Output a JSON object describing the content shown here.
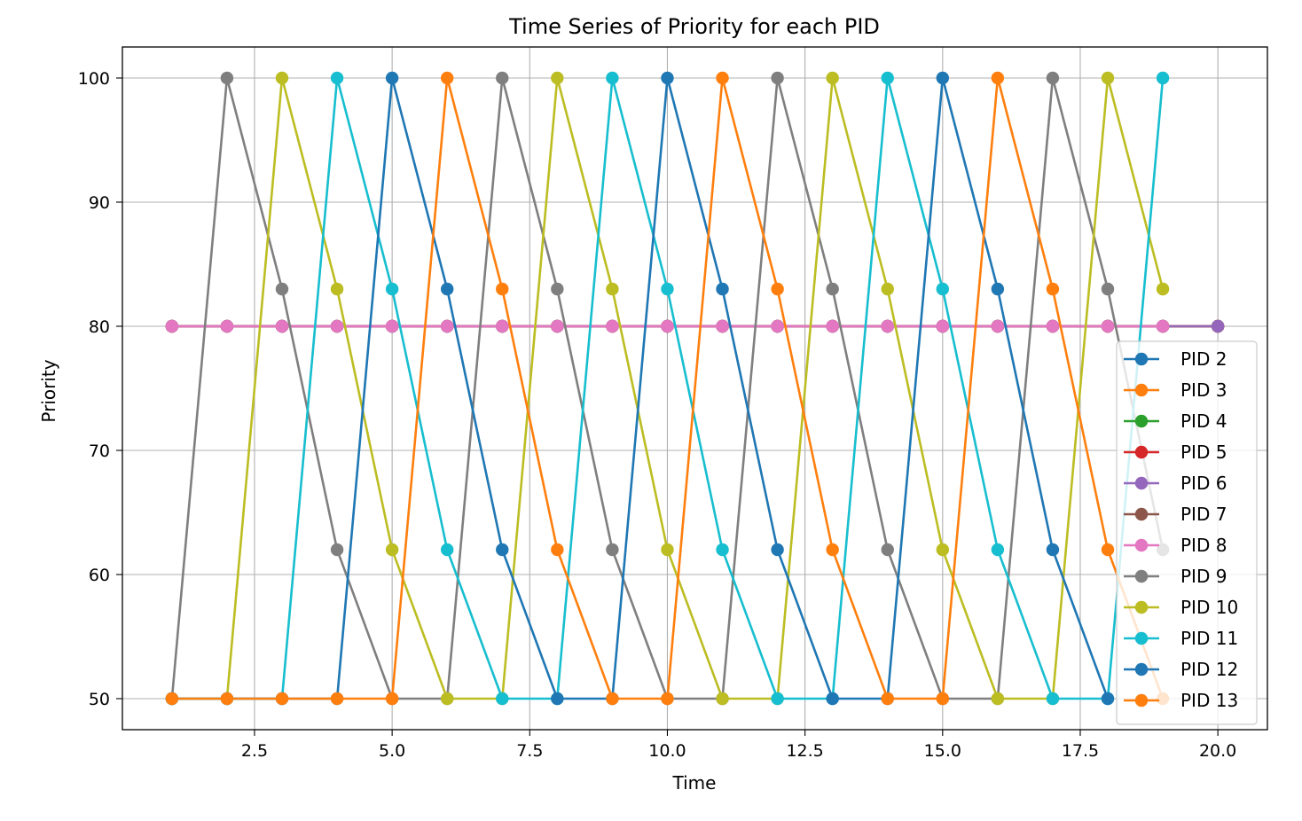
{
  "chart_data": {
    "type": "line",
    "title": "Time Series of Priority for each PID",
    "xlabel": "Time",
    "ylabel": "Priority",
    "xlim": [
      0.1,
      20.9
    ],
    "ylim": [
      47.5,
      102.5
    ],
    "xticks": [
      2.5,
      5.0,
      7.5,
      10.0,
      12.5,
      15.0,
      17.5,
      20.0
    ],
    "xtick_labels": [
      "2.5",
      "5.0",
      "7.5",
      "10.0",
      "12.5",
      "15.0",
      "17.5",
      "20.0"
    ],
    "yticks": [
      50,
      60,
      70,
      80,
      90,
      100
    ],
    "ytick_labels": [
      "50",
      "60",
      "70",
      "80",
      "90",
      "100"
    ],
    "grid": true,
    "legend_position": "lower-right",
    "series": [
      {
        "name": "PID 2",
        "color": "#1f77b4",
        "x": [
          1,
          2,
          3,
          4,
          5,
          6,
          7,
          8,
          9,
          10,
          11,
          12,
          13,
          14,
          15,
          16,
          17,
          18,
          19,
          20
        ],
        "y": [
          80,
          80,
          80,
          80,
          80,
          80,
          80,
          80,
          80,
          80,
          80,
          80,
          80,
          80,
          80,
          80,
          80,
          80,
          80,
          80
        ]
      },
      {
        "name": "PID 3",
        "color": "#ff7f0e",
        "x": [
          1,
          2,
          3,
          4,
          5,
          6,
          7,
          8,
          9,
          10,
          11,
          12,
          13,
          14,
          15,
          16,
          17,
          18,
          19,
          20
        ],
        "y": [
          80,
          80,
          80,
          80,
          80,
          80,
          80,
          80,
          80,
          80,
          80,
          80,
          80,
          80,
          80,
          80,
          80,
          80,
          80,
          80
        ]
      },
      {
        "name": "PID 4",
        "color": "#2ca02c",
        "x": [
          1,
          2,
          3,
          4,
          5,
          6,
          7,
          8,
          9,
          10,
          11,
          12,
          13,
          14,
          15,
          16,
          17,
          18,
          19,
          20
        ],
        "y": [
          80,
          80,
          80,
          80,
          80,
          80,
          80,
          80,
          80,
          80,
          80,
          80,
          80,
          80,
          80,
          80,
          80,
          80,
          80,
          80
        ]
      },
      {
        "name": "PID 5",
        "color": "#d62728",
        "x": [
          1,
          2,
          3,
          4,
          5,
          6,
          7,
          8,
          9,
          10,
          11,
          12,
          13,
          14,
          15,
          16,
          17,
          18,
          19,
          20
        ],
        "y": [
          80,
          80,
          80,
          80,
          80,
          80,
          80,
          80,
          80,
          80,
          80,
          80,
          80,
          80,
          80,
          80,
          80,
          80,
          80,
          80
        ]
      },
      {
        "name": "PID 6",
        "color": "#9467bd",
        "x": [
          1,
          2,
          3,
          4,
          5,
          6,
          7,
          8,
          9,
          10,
          11,
          12,
          13,
          14,
          15,
          16,
          17,
          18,
          19,
          20
        ],
        "y": [
          80,
          80,
          80,
          80,
          80,
          80,
          80,
          80,
          80,
          80,
          80,
          80,
          80,
          80,
          80,
          80,
          80,
          80,
          80,
          80
        ]
      },
      {
        "name": "PID 7",
        "color": "#8c564b",
        "x": [
          1,
          2,
          3,
          4,
          5,
          6,
          7,
          8,
          9,
          10,
          11,
          12,
          13,
          14,
          15,
          16,
          17,
          18,
          19
        ],
        "y": [
          80,
          80,
          80,
          80,
          80,
          80,
          80,
          80,
          80,
          80,
          80,
          80,
          80,
          80,
          80,
          80,
          80,
          80,
          80
        ]
      },
      {
        "name": "PID 8",
        "color": "#e377c2",
        "x": [
          1,
          2,
          3,
          4,
          5,
          6,
          7,
          8,
          9,
          10,
          11,
          12,
          13,
          14,
          15,
          16,
          17,
          18,
          19
        ],
        "y": [
          80,
          80,
          80,
          80,
          80,
          80,
          80,
          80,
          80,
          80,
          80,
          80,
          80,
          80,
          80,
          80,
          80,
          80,
          80
        ]
      },
      {
        "name": "PID 9",
        "color": "#7f7f7f",
        "x": [
          1,
          2,
          3,
          4,
          5,
          6,
          7,
          8,
          9,
          10,
          11,
          12,
          13,
          14,
          15,
          16,
          17,
          18,
          19
        ],
        "y": [
          50,
          100,
          83,
          62,
          50,
          50,
          100,
          83,
          62,
          50,
          50,
          100,
          83,
          62,
          50,
          50,
          100,
          83,
          62
        ]
      },
      {
        "name": "PID 10",
        "color": "#bcbd22",
        "x": [
          1,
          2,
          3,
          4,
          5,
          6,
          7,
          8,
          9,
          10,
          11,
          12,
          13,
          14,
          15,
          16,
          17,
          18,
          19
        ],
        "y": [
          50,
          50,
          100,
          83,
          62,
          50,
          50,
          100,
          83,
          62,
          50,
          50,
          100,
          83,
          62,
          50,
          50,
          100,
          83
        ]
      },
      {
        "name": "PID 11",
        "color": "#17becf",
        "x": [
          1,
          2,
          3,
          4,
          5,
          6,
          7,
          8,
          9,
          10,
          11,
          12,
          13,
          14,
          15,
          16,
          17,
          18,
          19
        ],
        "y": [
          50,
          50,
          50,
          100,
          83,
          62,
          50,
          50,
          100,
          83,
          62,
          50,
          50,
          100,
          83,
          62,
          50,
          50,
          100
        ]
      },
      {
        "name": "PID 12",
        "color": "#1f77b4",
        "x": [
          1,
          2,
          3,
          4,
          5,
          6,
          7,
          8,
          9,
          10,
          11,
          12,
          13,
          14,
          15,
          16,
          17,
          18
        ],
        "y": [
          50,
          50,
          50,
          50,
          100,
          83,
          62,
          50,
          50,
          100,
          83,
          62,
          50,
          50,
          100,
          83,
          62,
          50
        ]
      },
      {
        "name": "PID 13",
        "color": "#ff7f0e",
        "x": [
          1,
          2,
          3,
          4,
          5,
          6,
          7,
          8,
          9,
          10,
          11,
          12,
          13,
          14,
          15,
          16,
          17,
          18,
          19
        ],
        "y": [
          50,
          50,
          50,
          50,
          50,
          100,
          83,
          62,
          50,
          50,
          100,
          83,
          62,
          50,
          50,
          100,
          83,
          62,
          50
        ]
      }
    ]
  }
}
